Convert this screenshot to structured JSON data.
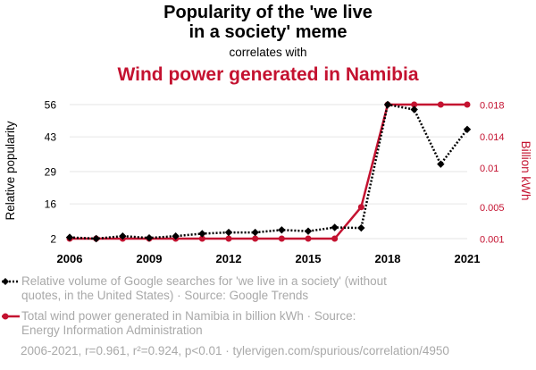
{
  "chart_data": {
    "type": "line",
    "title": "Popularity of the 'we live in a society' meme",
    "title_lines": [
      "Popularity of the 'we live",
      "in a society' meme"
    ],
    "subtitle": "correlates with",
    "title2": "Wind power generated in Namibia",
    "x": [
      2006,
      2007,
      2008,
      2009,
      2010,
      2011,
      2012,
      2013,
      2014,
      2015,
      2016,
      2017,
      2018,
      2019,
      2020,
      2021
    ],
    "xticks": [
      "2006",
      "2009",
      "2012",
      "2015",
      "2018",
      "2021"
    ],
    "xlim": [
      2006,
      2021
    ],
    "ylabel_left": "Relative popularity",
    "ylabel_right": "Billion kWh",
    "ylim_left": [
      2,
      56
    ],
    "yticks_left": [
      "2",
      "16",
      "29",
      "43",
      "56"
    ],
    "ylim_right": [
      0.001,
      0.018
    ],
    "yticks_right": [
      "0.001",
      "0.005",
      "0.01",
      "0.014",
      "0.018"
    ],
    "series": [
      {
        "name": "Relative volume of Google searches for 'we live in a society' (without quotes, in the United States) · Source: Google Trends",
        "axis": "left",
        "color": "#000000",
        "style": "dotted",
        "marker": "diamond",
        "values": [
          2.5,
          2,
          3,
          2.3,
          3,
          4,
          4.5,
          4.5,
          5.5,
          5,
          6.5,
          6.3,
          56,
          54,
          32,
          46
        ]
      },
      {
        "name": "Total wind power generated in Namibia in billion kWh · Source: Energy Information Administration",
        "axis": "right",
        "color": "#c41230",
        "style": "solid",
        "marker": "circle",
        "values": [
          0.001,
          0.001,
          0.001,
          0.001,
          0.001,
          0.001,
          0.001,
          0.001,
          0.001,
          0.001,
          0.001,
          0.005,
          0.018,
          0.018,
          0.018,
          0.018
        ]
      }
    ],
    "legend": [
      "Relative volume of Google searches for 'we live in a society' (without quotes, in the United States) · Source: Google Trends",
      "Total wind power generated in Namibia in billion kWh · Source: Energy Information Administration"
    ],
    "footer": "2006-2021, r=0.961, r²=0.924, p<0.01 · tylervigen.com/spurious/correlation/4950",
    "colors": {
      "accent": "#c41230",
      "text": "#000000",
      "muted": "#a9a9a9",
      "grid": "#e6e6e6"
    }
  }
}
